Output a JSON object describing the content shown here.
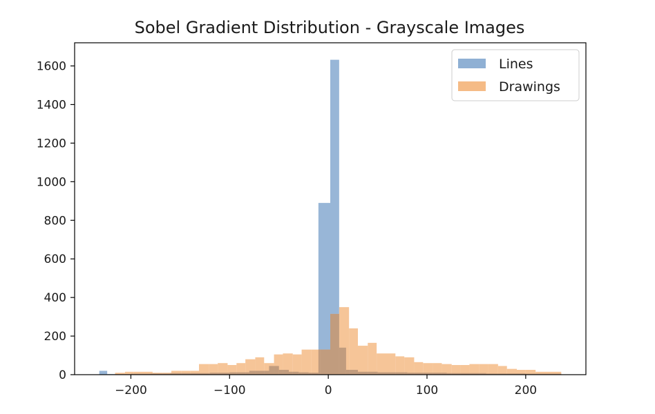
{
  "chart_data": {
    "type": "bar",
    "title": "Sobel Gradient Distribution - Grayscale Images",
    "xlabel": "",
    "ylabel": "",
    "xlim": [
      -257,
      261
    ],
    "ylim": [
      0,
      1720
    ],
    "xticks": [
      -200,
      -100,
      0,
      100,
      200
    ],
    "xtick_labels": [
      "−200",
      "−100",
      "0",
      "100",
      "200"
    ],
    "yticks": [
      0,
      200,
      400,
      600,
      800,
      1000,
      1200,
      1400,
      1600
    ],
    "ytick_labels": [
      "0",
      "200",
      "400",
      "600",
      "800",
      "1000",
      "1200",
      "1400",
      "1600"
    ],
    "grid": false,
    "legend": "top-right",
    "series": [
      {
        "name": "Lines",
        "color": "#8fb0d4",
        "bins": [
          [
            -232,
            -224,
            20
          ],
          [
            -224,
            -216,
            3
          ],
          [
            -216,
            -208,
            3
          ],
          [
            -208,
            -200,
            3
          ],
          [
            -200,
            -180,
            5
          ],
          [
            -180,
            -160,
            6
          ],
          [
            -160,
            -140,
            8
          ],
          [
            -140,
            -120,
            8
          ],
          [
            -120,
            -100,
            10
          ],
          [
            -100,
            -80,
            12
          ],
          [
            -80,
            -60,
            20
          ],
          [
            -60,
            -50,
            45
          ],
          [
            -50,
            -40,
            25
          ],
          [
            -40,
            -30,
            15
          ],
          [
            -30,
            -20,
            12
          ],
          [
            -20,
            -10,
            10
          ],
          [
            -10,
            2,
            890
          ],
          [
            2,
            11,
            1632
          ],
          [
            11,
            18,
            140
          ],
          [
            18,
            30,
            25
          ],
          [
            30,
            50,
            15
          ],
          [
            50,
            80,
            12
          ],
          [
            80,
            120,
            10
          ],
          [
            120,
            160,
            8
          ],
          [
            160,
            200,
            6
          ],
          [
            200,
            236,
            5
          ]
        ]
      },
      {
        "name": "Drawings",
        "color": "#f5bb86",
        "bins": [
          [
            -216,
            -206,
            10
          ],
          [
            -206,
            -197,
            15
          ],
          [
            -197,
            -187,
            15
          ],
          [
            -187,
            -178,
            15
          ],
          [
            -178,
            -168,
            10
          ],
          [
            -168,
            -159,
            10
          ],
          [
            -159,
            -149,
            20
          ],
          [
            -149,
            -140,
            20
          ],
          [
            -140,
            -131,
            20
          ],
          [
            -131,
            -121,
            55
          ],
          [
            -121,
            -112,
            55
          ],
          [
            -112,
            -102,
            60
          ],
          [
            -102,
            -93,
            50
          ],
          [
            -93,
            -84,
            60
          ],
          [
            -84,
            -74,
            80
          ],
          [
            -74,
            -65,
            90
          ],
          [
            -65,
            -55,
            60
          ],
          [
            -55,
            -46,
            105
          ],
          [
            -46,
            -36,
            110
          ],
          [
            -36,
            -27,
            105
          ],
          [
            -27,
            -17,
            130
          ],
          [
            -17,
            -8,
            130
          ],
          [
            -8,
            2,
            130
          ],
          [
            2,
            11,
            315
          ],
          [
            11,
            21,
            350
          ],
          [
            21,
            30,
            240
          ],
          [
            30,
            40,
            150
          ],
          [
            40,
            49,
            165
          ],
          [
            49,
            58,
            110
          ],
          [
            58,
            68,
            110
          ],
          [
            68,
            77,
            95
          ],
          [
            77,
            87,
            90
          ],
          [
            87,
            96,
            65
          ],
          [
            96,
            106,
            60
          ],
          [
            106,
            115,
            60
          ],
          [
            115,
            125,
            55
          ],
          [
            125,
            134,
            50
          ],
          [
            134,
            143,
            50
          ],
          [
            143,
            153,
            55
          ],
          [
            153,
            162,
            55
          ],
          [
            162,
            172,
            55
          ],
          [
            172,
            181,
            45
          ],
          [
            181,
            191,
            30
          ],
          [
            191,
            200,
            25
          ],
          [
            200,
            210,
            25
          ],
          [
            210,
            219,
            15
          ],
          [
            219,
            236,
            15
          ]
        ]
      }
    ]
  }
}
